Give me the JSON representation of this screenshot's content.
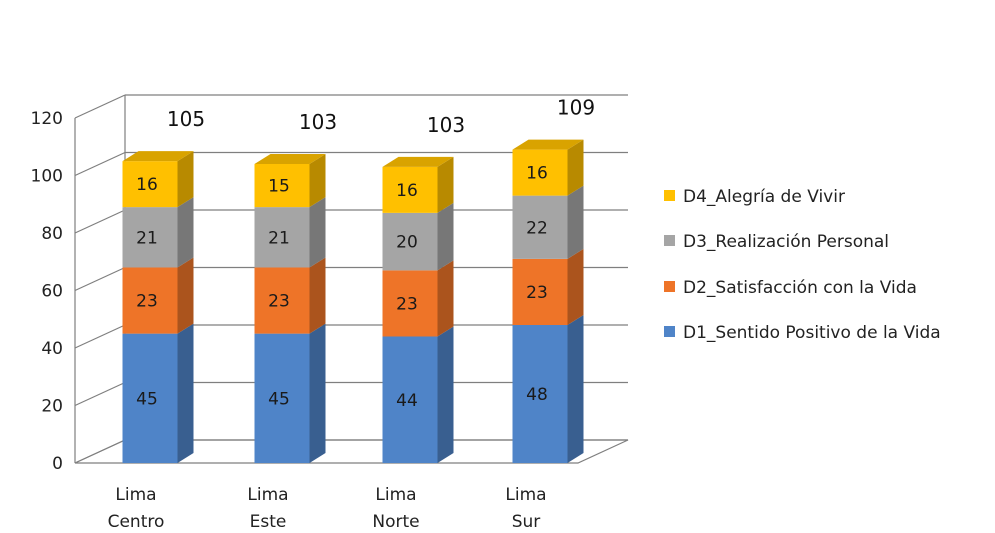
{
  "chart_data": {
    "type": "bar",
    "stacked": true,
    "three_d": true,
    "categories": [
      [
        "Lima",
        "Centro"
      ],
      [
        "Lima",
        "Este"
      ],
      [
        "Lima",
        "Norte"
      ],
      [
        "Lima",
        "Sur"
      ]
    ],
    "series": [
      {
        "name": "D1_Sentido Positivo de la Vida",
        "values": [
          45,
          45,
          44,
          48
        ],
        "color": "#4F84C8"
      },
      {
        "name": "D2_Satisfacción con la Vida",
        "values": [
          23,
          23,
          23,
          23
        ],
        "color": "#EE7428"
      },
      {
        "name": "D3_Realización Personal",
        "values": [
          21,
          21,
          20,
          22
        ],
        "color": "#A5A5A5"
      },
      {
        "name": "D4_Alegría de Vivir",
        "values": [
          16,
          15,
          16,
          16
        ],
        "color": "#FFC000"
      }
    ],
    "totals": [
      105,
      103,
      103,
      109
    ],
    "ylim": [
      0,
      120
    ],
    "yticks": [
      0,
      20,
      40,
      60,
      80,
      100,
      120
    ],
    "grid": true,
    "legend": "right",
    "title": "",
    "xlabel": "",
    "ylabel": ""
  }
}
